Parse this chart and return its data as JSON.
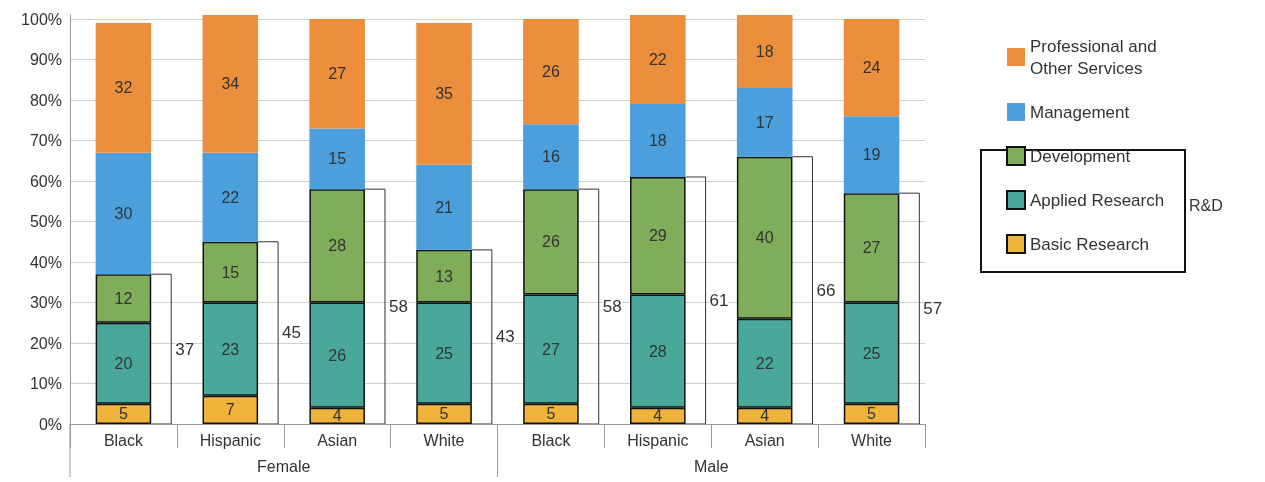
{
  "chart_data": {
    "type": "bar",
    "stacked": true,
    "categories": [
      "Black",
      "Hispanic",
      "Asian",
      "White",
      "Black",
      "Hispanic",
      "Asian",
      "White"
    ],
    "series": [
      {
        "name": "Basic Research",
        "color": "#f0b43c",
        "values": [
          5,
          7,
          4,
          5,
          5,
          4,
          4,
          5
        ]
      },
      {
        "name": "Applied Research",
        "color": "#4aa89a",
        "values": [
          20,
          23,
          26,
          25,
          27,
          28,
          22,
          25
        ]
      },
      {
        "name": "Development",
        "color": "#7fad5a",
        "values": [
          12,
          15,
          28,
          13,
          26,
          29,
          40,
          27
        ]
      },
      {
        "name": "Management",
        "color": "#4a9fdc",
        "values": [
          30,
          22,
          15,
          21,
          16,
          18,
          17,
          19
        ]
      },
      {
        "name": "Professional and Other Services",
        "color": "#ec8f3c",
        "values": [
          32,
          34,
          27,
          35,
          26,
          22,
          18,
          24
        ]
      }
    ],
    "ylim": [
      0,
      101
    ],
    "yticks": [
      {
        "value": 0,
        "label": "0%"
      },
      {
        "value": 10,
        "label": "10%"
      },
      {
        "value": 20,
        "label": "20%"
      },
      {
        "value": 30,
        "label": "30%"
      },
      {
        "value": 40,
        "label": "40%"
      },
      {
        "value": 50,
        "label": "50%"
      },
      {
        "value": 60,
        "label": "60%"
      },
      {
        "value": 70,
        "label": "70%"
      },
      {
        "value": 80,
        "label": "80%"
      },
      {
        "value": 90,
        "label": "90%"
      },
      {
        "value": 100,
        "label": "100%"
      }
    ],
    "grid": "y",
    "legend": "right",
    "data_labels": true,
    "annotations": [
      "R&D",
      "Female",
      "Male",
      "37",
      "45",
      "58",
      "43",
      "58",
      "61",
      "66",
      "57"
    ]
  }
}
